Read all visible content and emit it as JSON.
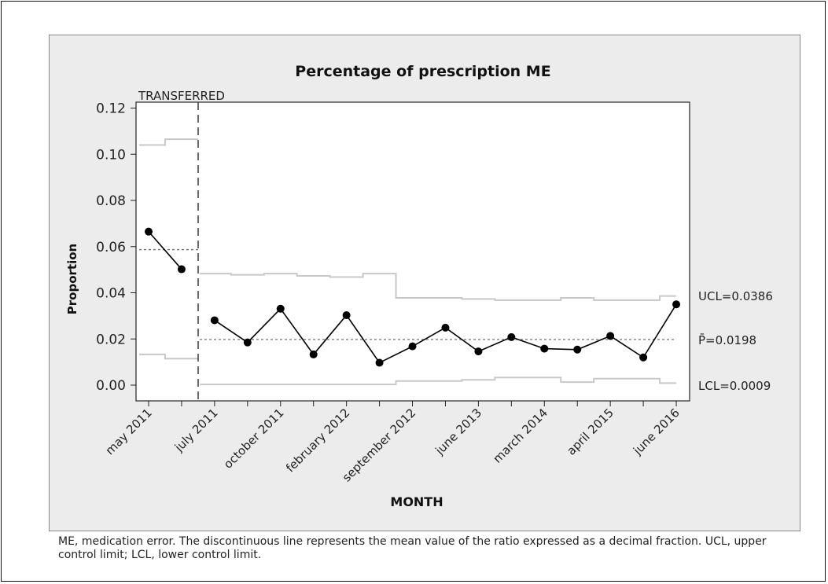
{
  "chart_data": {
    "type": "line",
    "title": "Percentage of prescription ME",
    "xlabel": "MONTH",
    "ylabel": "Proportion",
    "ylim": [
      0.0,
      0.12
    ],
    "yticks": [
      "0.00",
      "0.02",
      "0.04",
      "0.06",
      "0.08",
      "0.10",
      "0.12"
    ],
    "xtick_labels": [
      "may 2011",
      "july 2011",
      "october 2011",
      "february 2012",
      "september 2012",
      "june 2013",
      "march 2014",
      "april 2015",
      "june 2016"
    ],
    "phase_label": "TRANSFERRED",
    "values": [
      0.0665,
      0.0502,
      0.0281,
      0.0185,
      0.0331,
      0.0133,
      0.0303,
      0.0097,
      0.0168,
      0.0249,
      0.0146,
      0.0208,
      0.0158,
      0.0154,
      0.0213,
      0.012,
      0.035
    ],
    "phase1_mean": 0.0587,
    "phase1_ucl": [
      0.104,
      0.1065
    ],
    "phase1_lcl": [
      0.0133,
      0.0115
    ],
    "ucl_steps": [
      0.0483,
      0.0478,
      0.0483,
      0.0473,
      0.0468,
      0.0483,
      0.0378,
      0.0378,
      0.0373,
      0.0368,
      0.0368,
      0.0378,
      0.0368,
      0.0368,
      0.0386
    ],
    "lcl_steps": [
      0.0003,
      0.0003,
      0.0003,
      0.0003,
      0.0003,
      0.0003,
      0.0018,
      0.0018,
      0.0023,
      0.0033,
      0.0033,
      0.0013,
      0.0028,
      0.0028,
      0.0009
    ],
    "center_line": 0.0198,
    "annotations": {
      "ucl": "UCL=0.0386",
      "pbar": "P̄=0.0198",
      "lcl": "LCL=0.0009"
    },
    "colors": {
      "data_line": "#000000",
      "limits": "#c8c8c8",
      "center": "#707070",
      "panel": "#ececec",
      "plot_bg": "#ffffff"
    }
  },
  "caption": "ME, medication error. The discontinuous line represents the mean value of the ratio expressed as a decimal fraction. UCL, upper control limit; LCL, lower control limit."
}
